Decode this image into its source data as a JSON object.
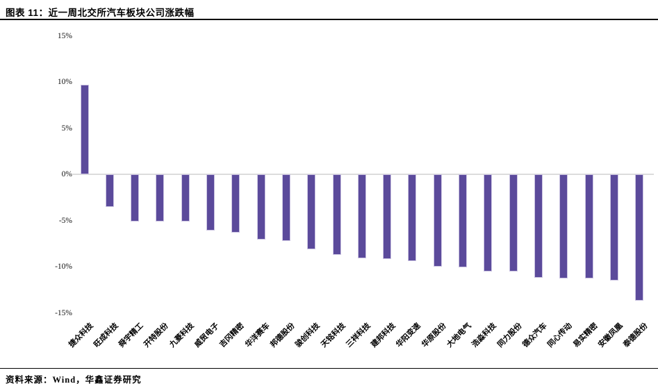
{
  "header": {
    "title": "图表 11：近一周北交所汽车板块公司涨跌幅"
  },
  "footer": {
    "source": "资料来源：Wind，华鑫证券研究"
  },
  "chart_data": {
    "type": "bar",
    "title": "近一周北交所汽车板块公司涨跌幅",
    "categories": [
      "捷众科技",
      "旺成科技",
      "舜宇精工",
      "开特股份",
      "九菱科技",
      "威贸电子",
      "吉冈精密",
      "华洋赛车",
      "邦德股份",
      "骏创科技",
      "天铭科技",
      "三祥科技",
      "建邦科技",
      "华阳变速",
      "华原股份",
      "大地电气",
      "浩淼科技",
      "同力股份",
      "德众汽车",
      "同心传动",
      "易实精密",
      "安徽凤凰",
      "泰德股份"
    ],
    "values": [
      9.7,
      -3.5,
      -5.1,
      -5.1,
      -5.1,
      -6.1,
      -6.3,
      -7.1,
      -7.2,
      -8.1,
      -8.7,
      -9.1,
      -9.2,
      -9.4,
      -10.0,
      -10.1,
      -10.5,
      -10.5,
      -11.2,
      -11.3,
      -11.3,
      -11.5,
      -13.7
    ],
    "unit": "%",
    "xlabel": "",
    "ylabel": "",
    "ylim": [
      -15,
      15
    ],
    "yticks_labels": [
      "15%",
      "10%",
      "5%",
      "0%",
      "-5%",
      "-10%",
      "-15%"
    ],
    "yticks_values": [
      15,
      10,
      5,
      0,
      -5,
      -10,
      -15
    ],
    "grid": false,
    "legend_position": "none",
    "bar_color": "#5B4A9B",
    "bar_edge_color": "#CBC4E2",
    "zero_axis_color": "#DCDCDC"
  }
}
